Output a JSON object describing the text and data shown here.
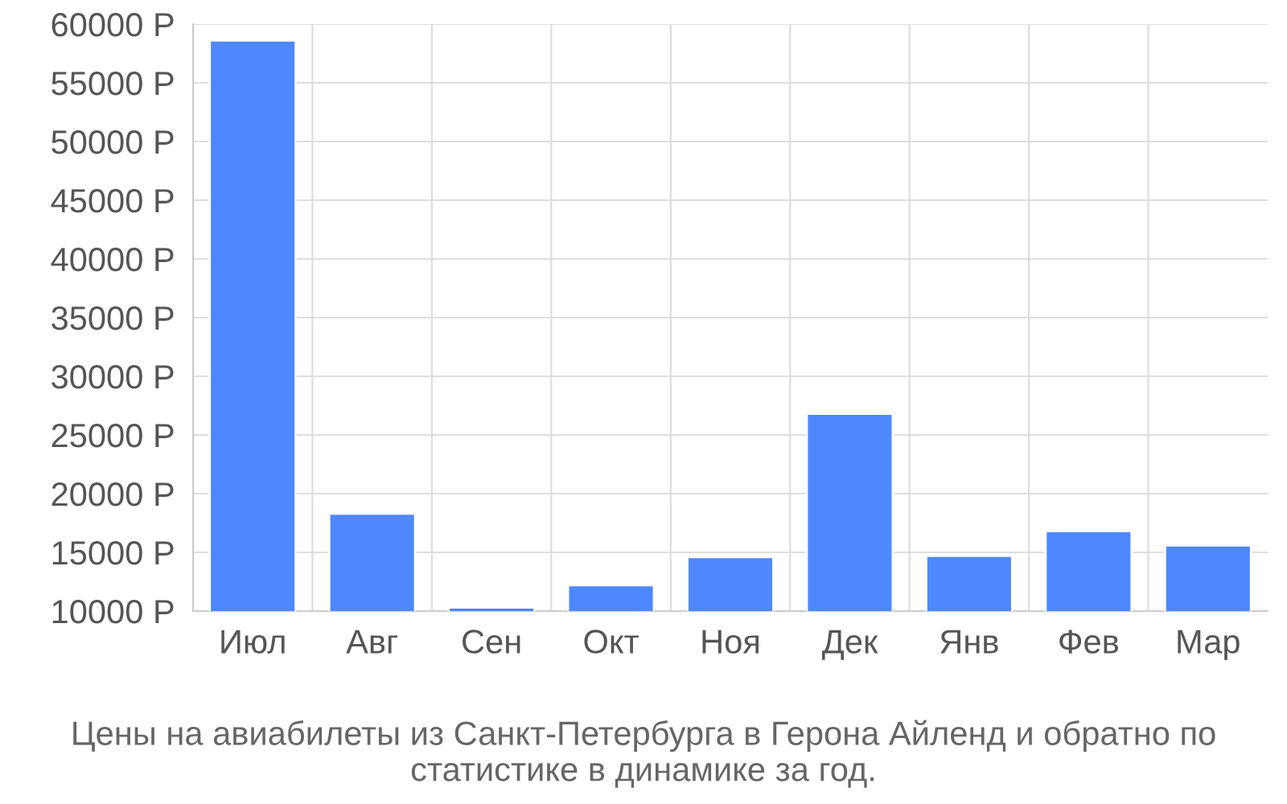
{
  "chart_data": {
    "type": "bar",
    "title": "Цены на авиабилеты из Санкт-Петербурга в Герона Айленд и обратно по статистике в динамике за год.",
    "categories": [
      "Июл",
      "Авг",
      "Сен",
      "Окт",
      "Ноя",
      "Дек",
      "Янв",
      "Фев",
      "Мар"
    ],
    "values": [
      58600,
      18300,
      10300,
      12200,
      14600,
      26800,
      14700,
      16800,
      15600
    ],
    "color": "#4d88ff",
    "ylim": [
      10000,
      60000
    ],
    "yticks": [
      {
        "value": 10000,
        "label": "10000 Р"
      },
      {
        "value": 15000,
        "label": "15000 Р"
      },
      {
        "value": 20000,
        "label": "20000 Р"
      },
      {
        "value": 25000,
        "label": "25000 Р"
      },
      {
        "value": 30000,
        "label": "30000 Р"
      },
      {
        "value": 35000,
        "label": "35000 Р"
      },
      {
        "value": 40000,
        "label": "40000 Р"
      },
      {
        "value": 45000,
        "label": "45000 Р"
      },
      {
        "value": 50000,
        "label": "50000 Р"
      },
      {
        "value": 55000,
        "label": "55000 Р"
      },
      {
        "value": 60000,
        "label": "60000 Р"
      }
    ],
    "grid": true
  }
}
